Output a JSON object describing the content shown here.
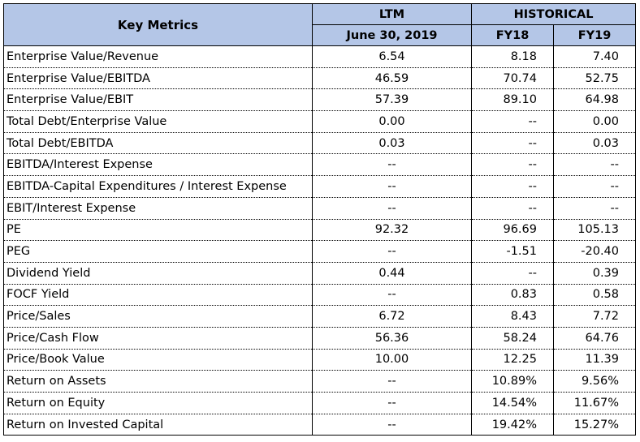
{
  "header": {
    "key_metrics": "Key Metrics",
    "ltm": "LTM",
    "historical": "HISTORICAL",
    "ltm_date": "June 30, 2019",
    "fy18": "FY18",
    "fy19": "FY19"
  },
  "colors": {
    "header_bg": "#b4c6e7"
  },
  "rows": [
    {
      "label": "Enterprise Value/Revenue",
      "ltm": "6.54",
      "fy18": "8.18",
      "fy19": "7.40"
    },
    {
      "label": "Enterprise Value/EBITDA",
      "ltm": "46.59",
      "fy18": "70.74",
      "fy19": "52.75"
    },
    {
      "label": "Enterprise Value/EBIT",
      "ltm": "57.39",
      "fy18": "89.10",
      "fy19": "64.98"
    },
    {
      "label": "Total Debt/Enterprise Value",
      "ltm": "0.00",
      "fy18": "--",
      "fy19": "0.00"
    },
    {
      "label": "Total Debt/EBITDA",
      "ltm": "0.03",
      "fy18": "--",
      "fy19": "0.03"
    },
    {
      "label": "EBITDA/Interest Expense",
      "ltm": "--",
      "fy18": "--",
      "fy19": "--"
    },
    {
      "label": "EBITDA-Capital Expenditures / Interest Expense",
      "ltm": "--",
      "fy18": "--",
      "fy19": "--"
    },
    {
      "label": "EBIT/Interest Expense",
      "ltm": "--",
      "fy18": "--",
      "fy19": "--"
    },
    {
      "label": "PE",
      "ltm": "92.32",
      "fy18": "96.69",
      "fy19": "105.13"
    },
    {
      "label": "PEG",
      "ltm": "--",
      "fy18": "-1.51",
      "fy19": "-20.40"
    },
    {
      "label": "Dividend Yield",
      "ltm": "0.44",
      "fy18": "--",
      "fy19": "0.39"
    },
    {
      "label": "FOCF Yield",
      "ltm": "--",
      "fy18": "0.83",
      "fy19": "0.58"
    },
    {
      "label": "Price/Sales",
      "ltm": "6.72",
      "fy18": "8.43",
      "fy19": "7.72"
    },
    {
      "label": "Price/Cash Flow",
      "ltm": "56.36",
      "fy18": "58.24",
      "fy19": "64.76"
    },
    {
      "label": "Price/Book Value",
      "ltm": "10.00",
      "fy18": "12.25",
      "fy19": "11.39"
    },
    {
      "label": "Return on Assets",
      "ltm": "--",
      "fy18": "10.89%",
      "fy19": "9.56%"
    },
    {
      "label": "Return on Equity",
      "ltm": "--",
      "fy18": "14.54%",
      "fy19": "11.67%"
    },
    {
      "label": "Return on Invested Capital",
      "ltm": "--",
      "fy18": "19.42%",
      "fy19": "15.27%"
    }
  ]
}
